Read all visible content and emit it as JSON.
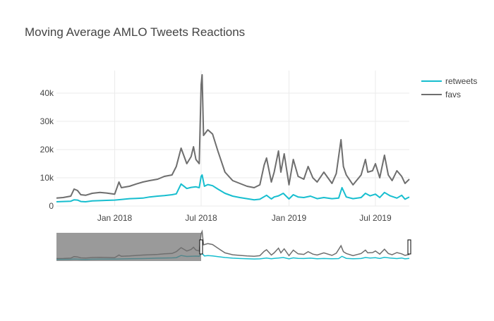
{
  "chart_data": {
    "type": "line",
    "title": "Moving Average AMLO Tweets Reactions",
    "x_range": [
      "2017-09-01",
      "2019-09-10"
    ],
    "ylim": [
      0,
      48000
    ],
    "y_ticks": [
      {
        "value": 0,
        "label": "0"
      },
      {
        "value": 10000,
        "label": "10k"
      },
      {
        "value": 20000,
        "label": "20k"
      },
      {
        "value": 30000,
        "label": "30k"
      },
      {
        "value": 40000,
        "label": "40k"
      }
    ],
    "x_ticks": [
      {
        "value": "2018-01-01",
        "label": "Jan 2018"
      },
      {
        "value": "2018-07-01",
        "label": "Jul 2018"
      },
      {
        "value": "2019-01-01",
        "label": "Jan 2019"
      },
      {
        "value": "2019-07-01",
        "label": "Jul 2019"
      }
    ],
    "grid": true,
    "legend_position": "top-right",
    "series": [
      {
        "name": "retweets",
        "color": "#17becf",
        "points": [
          [
            "2017-09-01",
            1500
          ],
          [
            "2017-09-15",
            1600
          ],
          [
            "2017-10-01",
            1700
          ],
          [
            "2017-10-08",
            2200
          ],
          [
            "2017-10-15",
            2100
          ],
          [
            "2017-10-22",
            1600
          ],
          [
            "2017-11-01",
            1500
          ],
          [
            "2017-11-15",
            1800
          ],
          [
            "2017-12-01",
            1900
          ],
          [
            "2017-12-15",
            2000
          ],
          [
            "2018-01-01",
            2100
          ],
          [
            "2018-01-15",
            2300
          ],
          [
            "2018-02-01",
            2600
          ],
          [
            "2018-02-15",
            2700
          ],
          [
            "2018-03-01",
            2800
          ],
          [
            "2018-03-15",
            3200
          ],
          [
            "2018-04-01",
            3500
          ],
          [
            "2018-04-15",
            3700
          ],
          [
            "2018-05-01",
            4000
          ],
          [
            "2018-05-10",
            4300
          ],
          [
            "2018-05-20",
            7800
          ],
          [
            "2018-06-01",
            6200
          ],
          [
            "2018-06-10",
            6600
          ],
          [
            "2018-06-20",
            6800
          ],
          [
            "2018-06-27",
            6500
          ],
          [
            "2018-07-01",
            10500
          ],
          [
            "2018-07-03",
            11000
          ],
          [
            "2018-07-08",
            7000
          ],
          [
            "2018-07-15",
            7600
          ],
          [
            "2018-07-25",
            7200
          ],
          [
            "2018-08-05",
            6000
          ],
          [
            "2018-08-20",
            4500
          ],
          [
            "2018-09-05",
            3500
          ],
          [
            "2018-09-20",
            3000
          ],
          [
            "2018-10-05",
            2600
          ],
          [
            "2018-10-20",
            2200
          ],
          [
            "2018-11-01",
            2400
          ],
          [
            "2018-11-15",
            3800
          ],
          [
            "2018-11-25",
            2500
          ],
          [
            "2018-12-01",
            3200
          ],
          [
            "2018-12-10",
            3600
          ],
          [
            "2018-12-20",
            4500
          ],
          [
            "2019-01-01",
            2500
          ],
          [
            "2019-01-10",
            4000
          ],
          [
            "2019-01-20",
            3200
          ],
          [
            "2019-02-01",
            3000
          ],
          [
            "2019-02-15",
            3500
          ],
          [
            "2019-03-01",
            2600
          ],
          [
            "2019-03-15",
            3000
          ],
          [
            "2019-04-01",
            2600
          ],
          [
            "2019-04-15",
            2800
          ],
          [
            "2019-04-22",
            6500
          ],
          [
            "2019-05-01",
            3200
          ],
          [
            "2019-05-15",
            2600
          ],
          [
            "2019-06-01",
            3000
          ],
          [
            "2019-06-10",
            4500
          ],
          [
            "2019-06-20",
            3600
          ],
          [
            "2019-07-01",
            4200
          ],
          [
            "2019-07-10",
            3000
          ],
          [
            "2019-07-20",
            4800
          ],
          [
            "2019-08-01",
            3600
          ],
          [
            "2019-08-15",
            2800
          ],
          [
            "2019-08-25",
            3800
          ],
          [
            "2019-09-01",
            2400
          ],
          [
            "2019-09-10",
            3200
          ]
        ]
      },
      {
        "name": "favs",
        "color": "#6e6e6e",
        "points": [
          [
            "2017-09-01",
            2800
          ],
          [
            "2017-09-15",
            3000
          ],
          [
            "2017-10-01",
            3500
          ],
          [
            "2017-10-08",
            6000
          ],
          [
            "2017-10-15",
            5500
          ],
          [
            "2017-10-22",
            4000
          ],
          [
            "2017-11-01",
            3800
          ],
          [
            "2017-11-15",
            4500
          ],
          [
            "2017-12-01",
            4800
          ],
          [
            "2017-12-15",
            4600
          ],
          [
            "2018-01-01",
            4200
          ],
          [
            "2018-01-10",
            8500
          ],
          [
            "2018-01-15",
            6500
          ],
          [
            "2018-02-01",
            7000
          ],
          [
            "2018-02-15",
            7800
          ],
          [
            "2018-03-01",
            8500
          ],
          [
            "2018-03-15",
            9000
          ],
          [
            "2018-04-01",
            9500
          ],
          [
            "2018-04-15",
            10500
          ],
          [
            "2018-05-01",
            11000
          ],
          [
            "2018-05-10",
            14000
          ],
          [
            "2018-05-20",
            20500
          ],
          [
            "2018-06-01",
            15000
          ],
          [
            "2018-06-10",
            17500
          ],
          [
            "2018-06-15",
            21000
          ],
          [
            "2018-06-20",
            16500
          ],
          [
            "2018-06-27",
            15000
          ],
          [
            "2018-07-01",
            43000
          ],
          [
            "2018-07-03",
            46500
          ],
          [
            "2018-07-06",
            25000
          ],
          [
            "2018-07-15",
            27000
          ],
          [
            "2018-07-25",
            25500
          ],
          [
            "2018-08-05",
            19500
          ],
          [
            "2018-08-20",
            12000
          ],
          [
            "2018-09-05",
            9000
          ],
          [
            "2018-09-20",
            8000
          ],
          [
            "2018-10-05",
            7000
          ],
          [
            "2018-10-20",
            6500
          ],
          [
            "2018-11-01",
            7500
          ],
          [
            "2018-11-10",
            14500
          ],
          [
            "2018-11-15",
            17000
          ],
          [
            "2018-11-25",
            8500
          ],
          [
            "2018-12-01",
            12000
          ],
          [
            "2018-12-10",
            19500
          ],
          [
            "2018-12-15",
            12000
          ],
          [
            "2018-12-22",
            18500
          ],
          [
            "2019-01-01",
            7500
          ],
          [
            "2019-01-10",
            16500
          ],
          [
            "2019-01-20",
            10500
          ],
          [
            "2019-02-01",
            9500
          ],
          [
            "2019-02-10",
            14000
          ],
          [
            "2019-02-20",
            10000
          ],
          [
            "2019-03-01",
            8500
          ],
          [
            "2019-03-15",
            12000
          ],
          [
            "2019-04-01",
            8000
          ],
          [
            "2019-04-10",
            11500
          ],
          [
            "2019-04-20",
            23500
          ],
          [
            "2019-04-25",
            14000
          ],
          [
            "2019-05-01",
            11000
          ],
          [
            "2019-05-15",
            7500
          ],
          [
            "2019-06-01",
            11000
          ],
          [
            "2019-06-10",
            16500
          ],
          [
            "2019-06-15",
            12000
          ],
          [
            "2019-06-25",
            12500
          ],
          [
            "2019-07-01",
            15000
          ],
          [
            "2019-07-10",
            10000
          ],
          [
            "2019-07-20",
            18000
          ],
          [
            "2019-07-28",
            11000
          ],
          [
            "2019-08-05",
            9000
          ],
          [
            "2019-08-15",
            12500
          ],
          [
            "2019-08-25",
            10500
          ],
          [
            "2019-09-01",
            8000
          ],
          [
            "2019-09-10",
            9500
          ]
        ]
      }
    ],
    "rangeslider": {
      "selected": [
        "2018-07-01",
        "2019-09-10"
      ]
    }
  }
}
